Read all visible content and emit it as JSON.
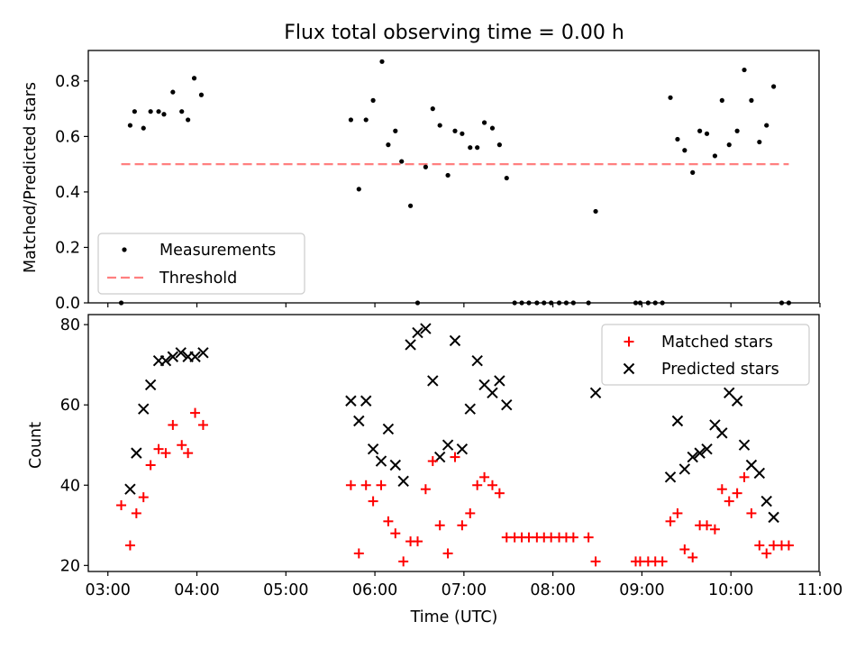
{
  "chart_data": [
    {
      "type": "scatter",
      "title": "Flux total observing time = 0.00 h",
      "xlabel": "",
      "ylabel": "Matched/Predicted stars",
      "xlim_hours": [
        2.78,
        10.99
      ],
      "ylim": [
        0.0,
        0.91
      ],
      "yticks": [
        0.0,
        0.2,
        0.4,
        0.6,
        0.8
      ],
      "ytick_labels": [
        "0.0",
        "0.2",
        "0.4",
        "0.6",
        "0.8"
      ],
      "grid": false,
      "legend_position": "lower-left",
      "series": [
        {
          "name": "Measurements",
          "color": "#000000",
          "marker": "dot",
          "x": [
            3.15,
            3.25,
            3.3,
            3.4,
            3.48,
            3.57,
            3.63,
            3.73,
            3.83,
            3.9,
            3.97,
            4.05,
            5.73,
            5.82,
            5.9,
            5.98,
            6.08,
            6.15,
            6.23,
            6.3,
            6.4,
            6.48,
            6.57,
            6.65,
            6.73,
            6.82,
            6.9,
            6.98,
            7.07,
            7.15,
            7.23,
            7.32,
            7.4,
            7.48,
            7.57,
            7.65,
            7.73,
            7.82,
            7.9,
            7.98,
            8.07,
            8.15,
            8.23,
            8.4,
            8.48,
            8.93,
            8.98,
            9.07,
            9.15,
            9.23,
            9.32,
            9.4,
            9.48,
            9.57,
            9.65,
            9.73,
            9.82,
            9.9,
            9.98,
            10.07,
            10.15,
            10.23,
            10.32,
            10.4,
            10.48,
            10.57,
            10.65
          ],
          "y": [
            0.0,
            0.64,
            0.69,
            0.63,
            0.69,
            0.69,
            0.68,
            0.76,
            0.69,
            0.66,
            0.81,
            0.75,
            0.66,
            0.41,
            0.66,
            0.73,
            0.87,
            0.57,
            0.62,
            0.51,
            0.35,
            0.0,
            0.49,
            0.7,
            0.64,
            0.46,
            0.62,
            0.61,
            0.56,
            0.56,
            0.65,
            0.63,
            0.57,
            0.45,
            0.0,
            0.0,
            0.0,
            0.0,
            0.0,
            0.0,
            0.0,
            0.0,
            0.0,
            0.0,
            0.33,
            0.0,
            0.0,
            0.0,
            0.0,
            0.0,
            0.74,
            0.59,
            0.55,
            0.47,
            0.62,
            0.61,
            0.53,
            0.73,
            0.57,
            0.62,
            0.84,
            0.73,
            0.58,
            0.64,
            0.78,
            0.0,
            0.0
          ]
        },
        {
          "name": "Threshold",
          "color": "#ff7f7f",
          "line": "dashed",
          "x": [
            3.15,
            10.65
          ],
          "y": [
            0.5,
            0.5
          ]
        }
      ]
    },
    {
      "type": "scatter",
      "title": "",
      "xlabel": "Time (UTC)",
      "ylabel": "Count",
      "xlim_hours": [
        2.78,
        10.99
      ],
      "xticks_hours": [
        3,
        4,
        5,
        6,
        7,
        8,
        9,
        10,
        11
      ],
      "xtick_labels": [
        "03:00",
        "04:00",
        "05:00",
        "06:00",
        "07:00",
        "08:00",
        "09:00",
        "10:00",
        "11:00"
      ],
      "ylim": [
        18.5,
        82.5
      ],
      "yticks": [
        20,
        40,
        60,
        80
      ],
      "ytick_labels": [
        "20",
        "40",
        "60",
        "80"
      ],
      "grid": false,
      "legend_position": "top-right",
      "series": [
        {
          "name": "Matched stars",
          "color": "#ff0000",
          "marker": "plus",
          "x": [
            3.15,
            3.25,
            3.32,
            3.4,
            3.48,
            3.57,
            3.65,
            3.73,
            3.83,
            3.9,
            3.98,
            4.07,
            5.73,
            5.82,
            5.9,
            5.98,
            6.07,
            6.15,
            6.23,
            6.32,
            6.4,
            6.48,
            6.57,
            6.65,
            6.73,
            6.82,
            6.9,
            6.98,
            7.07,
            7.15,
            7.23,
            7.32,
            7.4,
            7.48,
            7.57,
            7.65,
            7.73,
            7.82,
            7.9,
            7.98,
            8.07,
            8.15,
            8.23,
            8.4,
            8.48,
            8.93,
            8.98,
            9.07,
            9.15,
            9.23,
            9.32,
            9.4,
            9.48,
            9.57,
            9.65,
            9.73,
            9.82,
            9.9,
            9.98,
            10.07,
            10.15,
            10.23,
            10.32,
            10.4,
            10.48,
            10.57,
            10.65
          ],
          "y": [
            35,
            25,
            33,
            37,
            45,
            49,
            48,
            55,
            50,
            48,
            58,
            55,
            40,
            23,
            40,
            36,
            40,
            31,
            28,
            21,
            26,
            26,
            39,
            46,
            30,
            23,
            47,
            30,
            33,
            40,
            42,
            40,
            38,
            27,
            27,
            27,
            27,
            27,
            27,
            27,
            27,
            27,
            27,
            27,
            21,
            21,
            21,
            21,
            21,
            21,
            31,
            33,
            24,
            22,
            30,
            30,
            29,
            39,
            36,
            38,
            42,
            33,
            25,
            23,
            25,
            25,
            25
          ]
        },
        {
          "name": "Predicted stars",
          "color": "#000000",
          "marker": "x",
          "x": [
            3.25,
            3.32,
            3.4,
            3.48,
            3.57,
            3.65,
            3.73,
            3.82,
            3.9,
            3.98,
            4.07,
            5.73,
            5.82,
            5.9,
            5.98,
            6.07,
            6.15,
            6.23,
            6.32,
            6.4,
            6.48,
            6.57,
            6.65,
            6.73,
            6.82,
            6.9,
            6.98,
            7.07,
            7.15,
            7.23,
            7.32,
            7.4,
            7.48,
            8.48,
            9.32,
            9.4,
            9.48,
            9.57,
            9.65,
            9.73,
            9.82,
            9.9,
            9.98,
            10.07,
            10.15,
            10.23,
            10.32,
            10.4,
            10.48
          ],
          "y": [
            39,
            48,
            59,
            65,
            71,
            71,
            72,
            73,
            72,
            72,
            73,
            61,
            56,
            61,
            49,
            46,
            54,
            45,
            41,
            75,
            78,
            79,
            66,
            47,
            50,
            76,
            49,
            59,
            71,
            65,
            63,
            66,
            60,
            63,
            42,
            56,
            44,
            47,
            48,
            49,
            55,
            53,
            63,
            61,
            50,
            45,
            43,
            36,
            32
          ]
        }
      ]
    }
  ]
}
